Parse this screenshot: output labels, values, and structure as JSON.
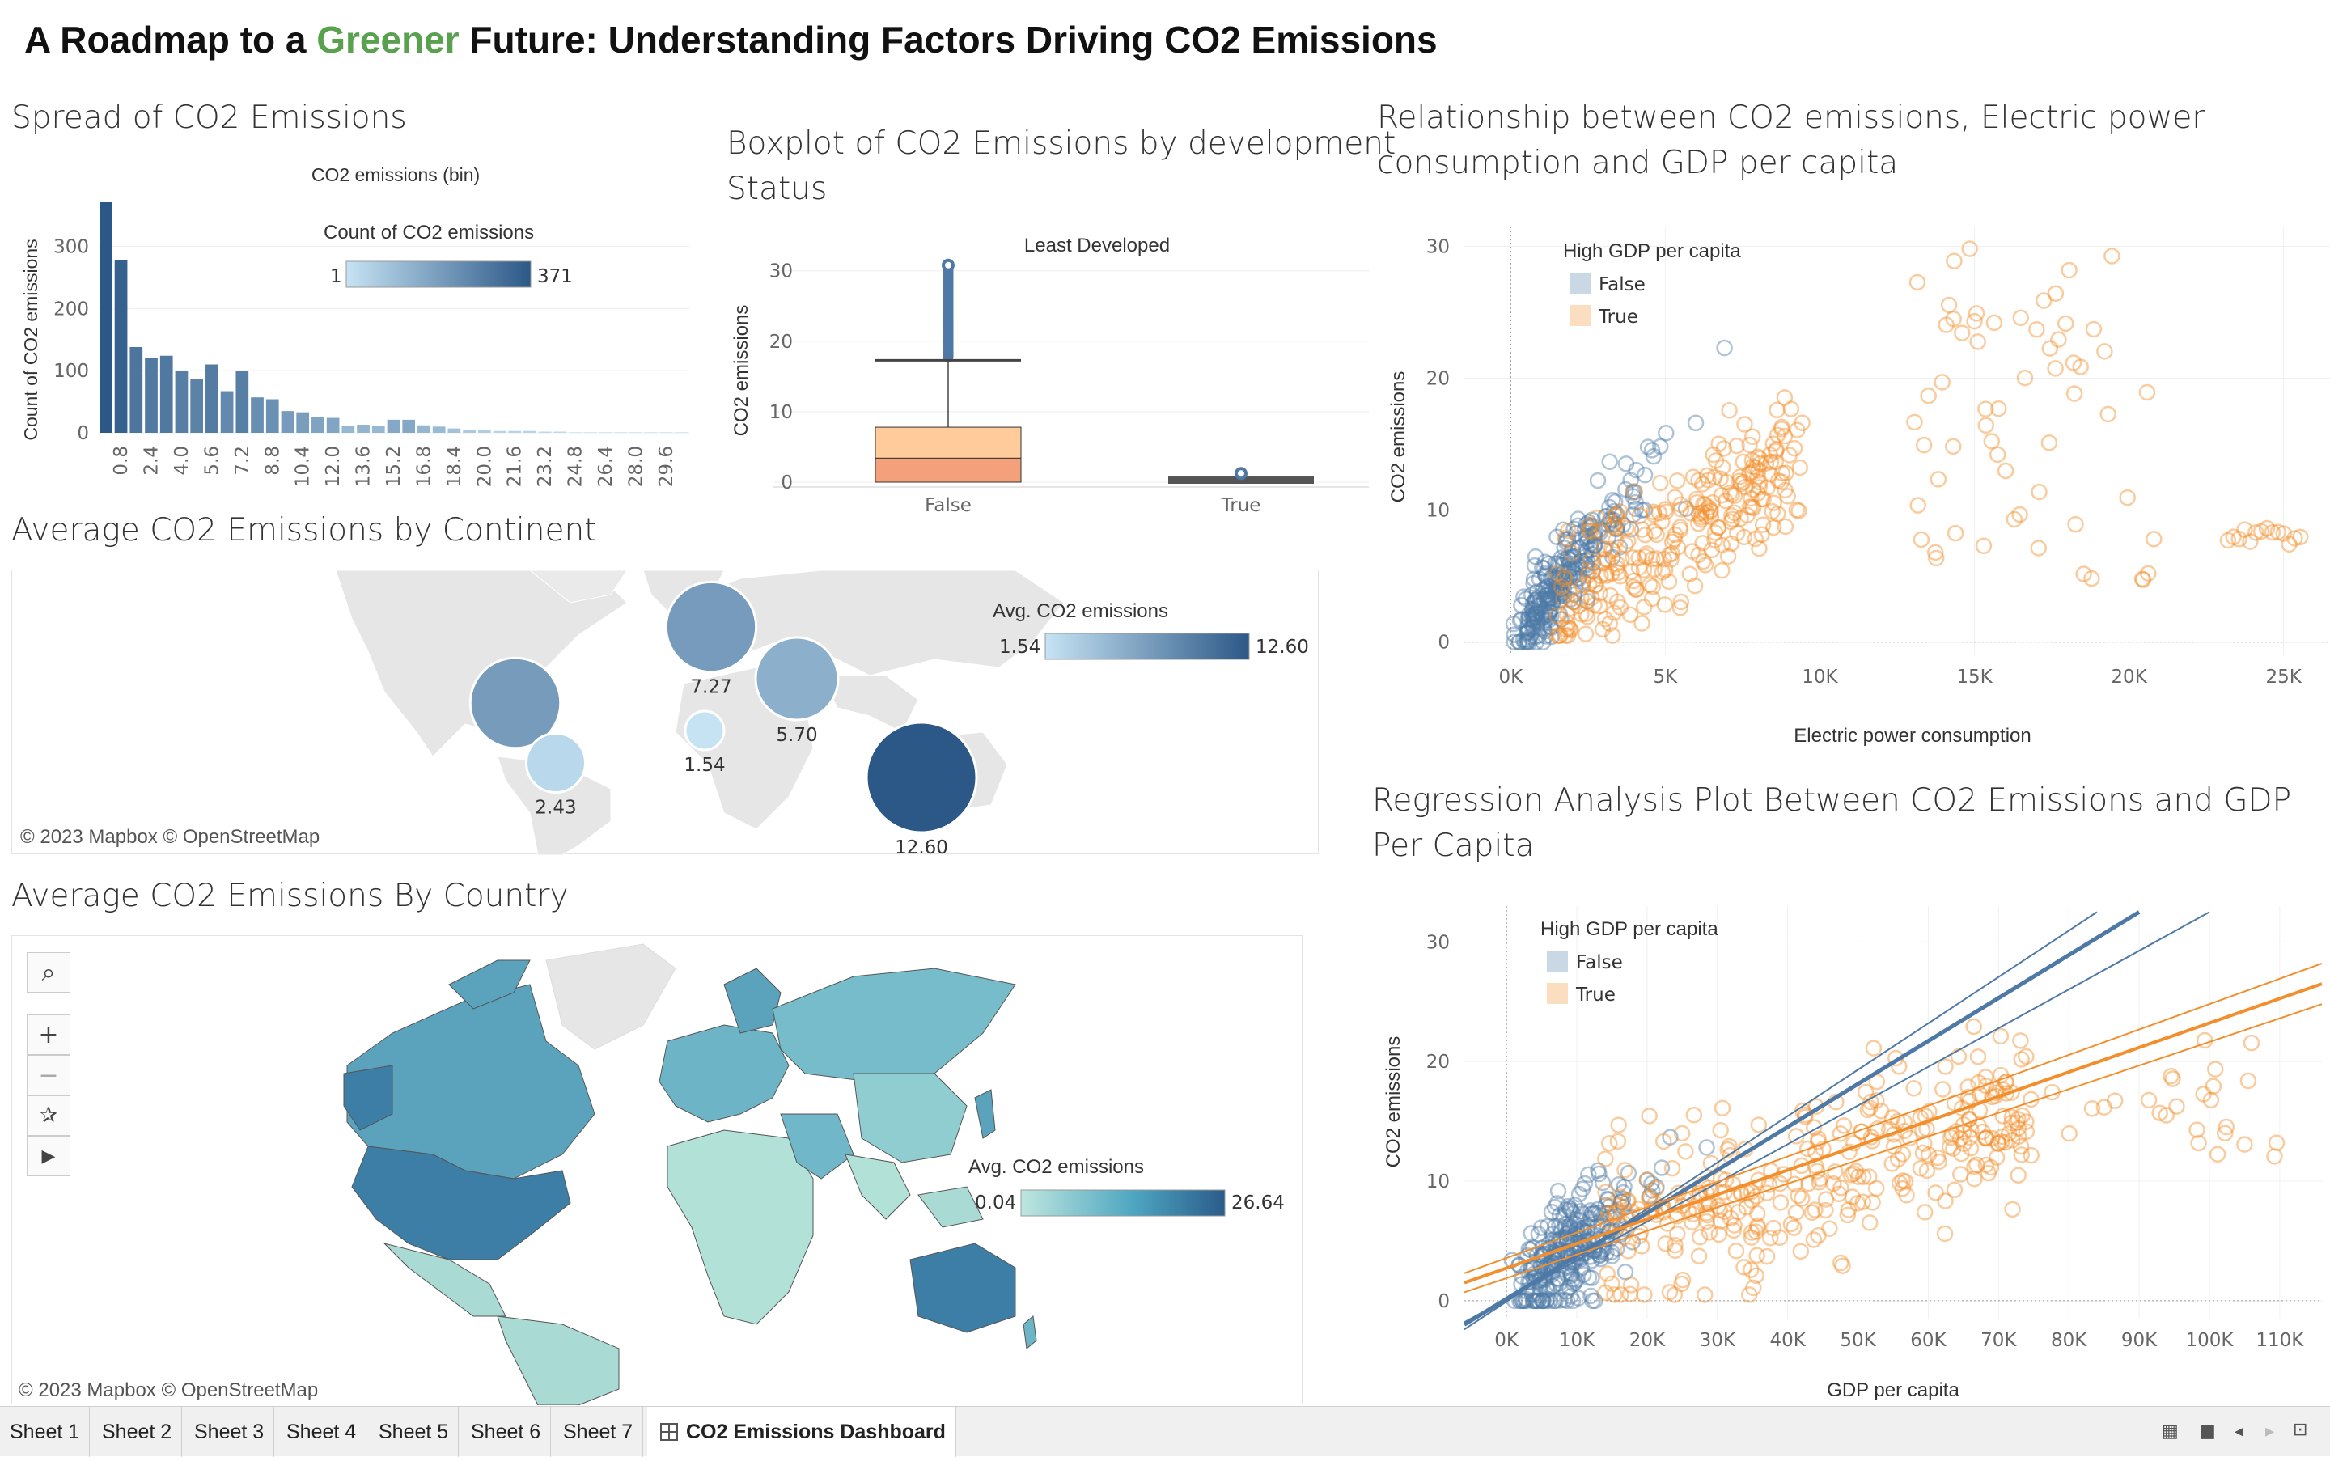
{
  "dashboard": {
    "title_part1": "A Roadmap to a ",
    "title_green": "Greener",
    "title_part2": " Future: Understanding Factors Driving CO2 Emissions",
    "green_color": "#59a14f"
  },
  "histogram": {
    "section_title": "Spread of CO2 Emissions",
    "chart_data": {
      "type": "bar",
      "title": "CO2 emissions (bin)",
      "xlabel": "",
      "ylabel": "Count of CO2 emissions",
      "ylim": [
        0,
        371
      ],
      "yticks": [
        0,
        100,
        200,
        300
      ],
      "categories": [
        "0.0",
        "0.8",
        "1.6",
        "2.4",
        "3.2",
        "4.0",
        "4.8",
        "5.6",
        "6.4",
        "7.2",
        "8.0",
        "8.8",
        "9.6",
        "10.4",
        "11.2",
        "12.0",
        "12.8",
        "13.6",
        "14.4",
        "15.2",
        "16.0",
        "16.8",
        "17.6",
        "18.4",
        "19.2",
        "20.0",
        "20.8",
        "21.6",
        "22.4",
        "23.2",
        "24.0",
        "24.8",
        "25.6",
        "26.4",
        "27.2",
        "28.0",
        "28.8",
        "29.6",
        "30.4"
      ],
      "tick_labels": [
        "0.8",
        "2.4",
        "4.0",
        "5.6",
        "7.2",
        "8.8",
        "10.4",
        "12.0",
        "13.6",
        "15.2",
        "16.8",
        "18.4",
        "20.0",
        "21.6",
        "23.2",
        "24.8",
        "26.4",
        "28.0",
        "29.6"
      ],
      "values": [
        371,
        278,
        138,
        120,
        124,
        100,
        87,
        110,
        67,
        99,
        57,
        54,
        35,
        33,
        26,
        24,
        11,
        13,
        11,
        21,
        21,
        12,
        10,
        7,
        5,
        4,
        3,
        3,
        3,
        2,
        2,
        1,
        1,
        1,
        1,
        1,
        1,
        1,
        1
      ],
      "legend": {
        "title": "Count of CO2 emissions",
        "min": "1",
        "max": "371",
        "color_low": "#c6e3f4",
        "color_high": "#2c5887"
      }
    }
  },
  "boxplot": {
    "section_title_line1": "Boxplot of CO2 Emissions by development",
    "section_title_line2": "Status",
    "chart_data": {
      "type": "box",
      "title": "Least Developed",
      "ylabel": "CO2 emissions",
      "ylim": [
        0,
        31
      ],
      "yticks": [
        0,
        10,
        20,
        30
      ],
      "categories": [
        "False",
        "True"
      ],
      "boxes": [
        {
          "category": "False",
          "min": 0,
          "q1": 0.0,
          "median": 3.4,
          "q3": 7.8,
          "max": 17.3,
          "outlier_max": 30.8
        },
        {
          "category": "True",
          "min": 0,
          "q1": 0.0,
          "median": 0.1,
          "q3": 0.4,
          "max": 0.8,
          "outlier_max": 1.0
        }
      ],
      "colors": {
        "upper_box": "#ffcb9a",
        "lower_box": "#f4a07a",
        "outliers": "#4e79a7",
        "whisker": "#444444"
      }
    }
  },
  "continent_map": {
    "section_title": "Average CO2 Emissions by Continent",
    "attribution": "© 2023 Mapbox © OpenStreetMap",
    "legend": {
      "title": "Avg. CO2 emissions",
      "min": "1.54",
      "max": "12.60",
      "color_low": "#c6e3f4",
      "color_high": "#2c5887"
    },
    "bubbles": [
      {
        "name": "North America",
        "value": 7.3,
        "label": ""
      },
      {
        "name": "South America",
        "value": 2.43,
        "label": "2.43"
      },
      {
        "name": "Europe",
        "value": 7.27,
        "label": "7.27"
      },
      {
        "name": "Africa",
        "value": 1.54,
        "label": "1.54"
      },
      {
        "name": "Asia",
        "value": 5.7,
        "label": "5.70"
      },
      {
        "name": "Oceania",
        "value": 12.6,
        "label": "12.60"
      }
    ]
  },
  "country_map": {
    "section_title": "Average CO2 Emissions By Country",
    "attribution": "© 2023 Mapbox © OpenStreetMap",
    "legend": {
      "title": "Avg. CO2 emissions",
      "min": "0.04",
      "max": "26.64",
      "color_low": "#bfe6df",
      "color_high": "#2b5c8a"
    },
    "tools": [
      "search-icon",
      "zoom-in-icon",
      "zoom-out-icon",
      "pin-reset-icon",
      "play-icon"
    ]
  },
  "scatter1": {
    "section_title_line1": "Relationship between CO2 emissions, Electric power",
    "section_title_line2": "consumption and GDP per capita",
    "chart_data": {
      "type": "scatter",
      "xlabel": "Electric power consumption",
      "ylabel": "CO2 emissions",
      "xlim": [
        -1500,
        26500
      ],
      "ylim": [
        -1,
        31.5
      ],
      "xticks": [
        0,
        5000,
        10000,
        15000,
        20000,
        25000
      ],
      "xtick_labels": [
        "0K",
        "5K",
        "10K",
        "15K",
        "20K",
        "25K"
      ],
      "yticks": [
        0,
        10,
        20,
        30
      ],
      "legend_title": "High GDP per capita",
      "series": [
        {
          "name": "False",
          "color": "#4e79a7"
        },
        {
          "name": "True",
          "color": "#f28e2b"
        }
      ]
    }
  },
  "scatter2": {
    "section_title_line1": "Regression Analysis Plot Between CO2 Emissions and GDP",
    "section_title_line2": "Per Capita",
    "chart_data": {
      "type": "scatter",
      "xlabel": "GDP per capita",
      "ylabel": "CO2 emissions",
      "xlim": [
        -6000,
        116000
      ],
      "ylim": [
        -1.5,
        33
      ],
      "xticks": [
        0,
        10000,
        20000,
        30000,
        40000,
        50000,
        60000,
        70000,
        80000,
        90000,
        100000,
        110000
      ],
      "xtick_labels": [
        "0K",
        "10K",
        "20K",
        "30K",
        "40K",
        "50K",
        "60K",
        "70K",
        "80K",
        "90K",
        "100K",
        "110K"
      ],
      "yticks": [
        0,
        10,
        20,
        30
      ],
      "legend_title": "High GDP per capita",
      "series": [
        {
          "name": "False",
          "color": "#4e79a7"
        },
        {
          "name": "True",
          "color": "#f28e2b"
        }
      ]
    }
  },
  "tabs": [
    "Sheet 1",
    "Sheet 2",
    "Sheet 3",
    "Sheet 4",
    "Sheet 5",
    "Sheet 6",
    "Sheet 7",
    "CO2 Emissions Dashboard"
  ]
}
